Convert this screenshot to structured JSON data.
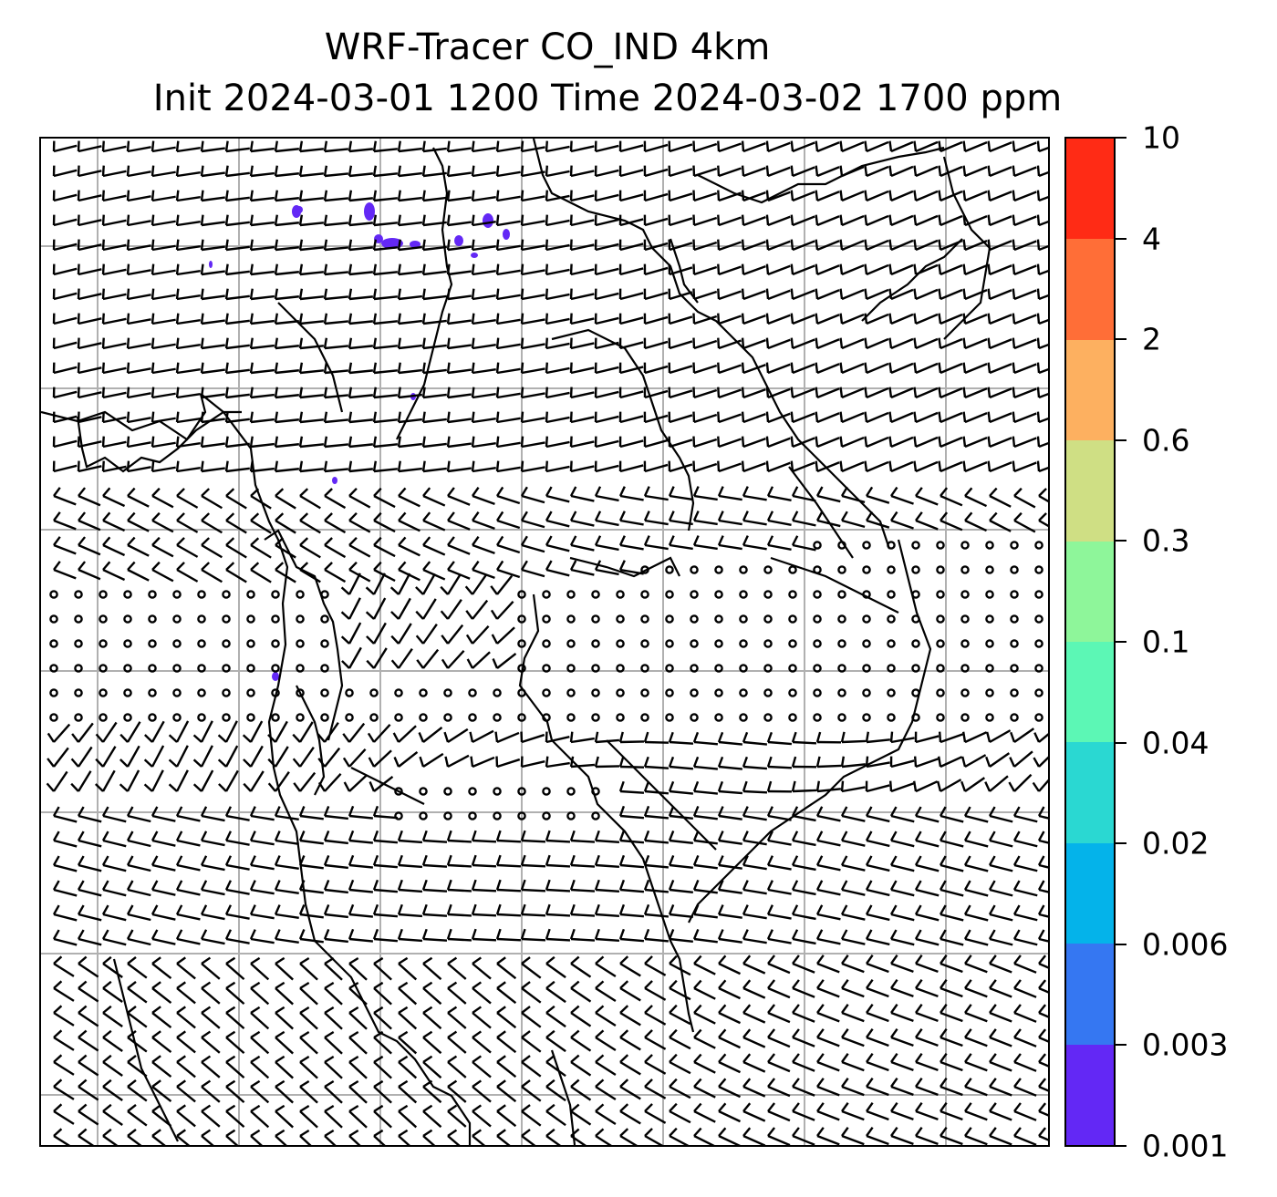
{
  "title_line1": "WRF-Tracer CO_IND 4km",
  "title_line2": "Init 2024-03-01 1200 Time 2024-03-02 1700 ppm",
  "colorbar": {
    "levels": [
      "0.001",
      "0.003",
      "0.006",
      "0.02",
      "0.04",
      "0.1",
      "0.3",
      "0.6",
      "2",
      "4",
      "10"
    ],
    "colors": [
      "#6328f5",
      "#3577f2",
      "#04b3ea",
      "#2ad8d2",
      "#5cf7b5",
      "#8ef69a",
      "#cfdf84",
      "#fdb060",
      "#ff6e37",
      "#ff2b15"
    ]
  },
  "map": {
    "tracer_color": "#6328f5",
    "gridline_color": "#b0b0b0",
    "coastline_color": "#000000",
    "barb_color": "#000000"
  }
}
